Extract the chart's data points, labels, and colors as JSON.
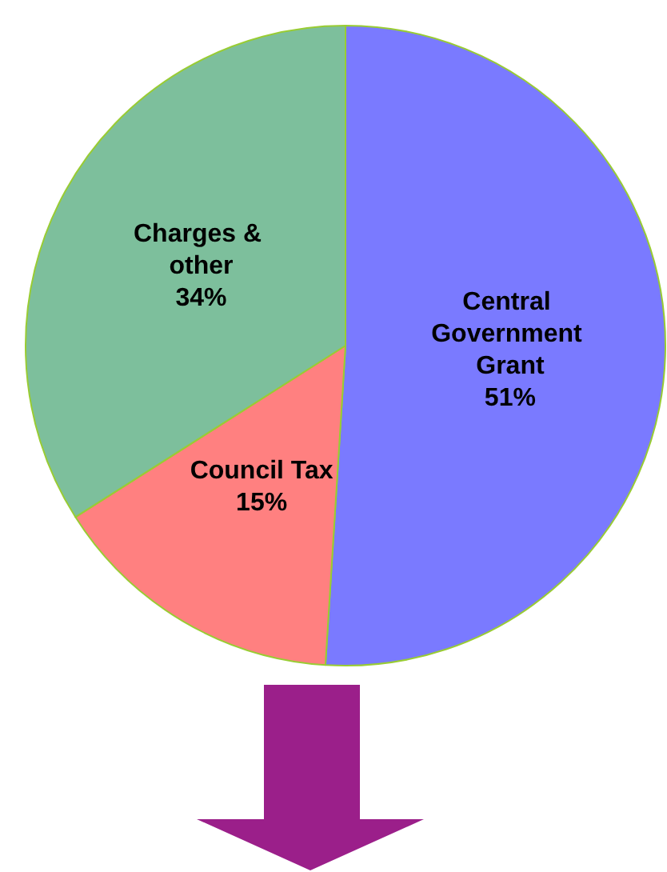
{
  "chart_data": {
    "type": "pie",
    "categories": [
      "Central Government Grant",
      "Council Tax",
      "Charges & other"
    ],
    "values": [
      51,
      15,
      34
    ],
    "value_labels": [
      "51%",
      "15%",
      "34%"
    ],
    "colors": [
      "#7a7aff",
      "#ff8080",
      "#7dbf9c"
    ],
    "legend": false
  }
}
